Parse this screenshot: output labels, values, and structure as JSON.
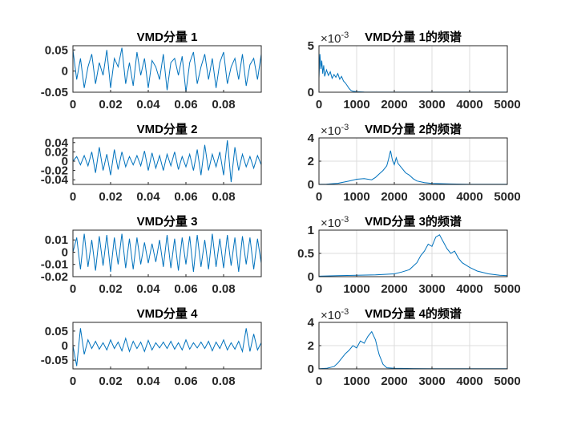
{
  "figure": {
    "background": "#ffffff"
  },
  "style": {
    "line_color": "#0072bd",
    "axis_color": "#262626",
    "grid_color": "#dcdcdc"
  },
  "chart_data": [
    {
      "id": "vmd1",
      "type": "line",
      "title": "VMD分量 1",
      "xlim": [
        0,
        0.1
      ],
      "ylim": [
        -0.05,
        0.06
      ],
      "xticks": [
        0,
        0.02,
        0.04,
        0.06,
        0.08
      ],
      "xtick_labels": [
        "0",
        "0.02",
        "0.04",
        "0.06",
        "0.08"
      ],
      "yticks": [
        0.05,
        0,
        -0.05
      ],
      "ytick_labels": [
        "0.05",
        "0",
        "-0.05"
      ],
      "grid": false,
      "series": [
        {
          "x": [
            0,
            0.002,
            0.004,
            0.006,
            0.008,
            0.01,
            0.012,
            0.014,
            0.016,
            0.018,
            0.02,
            0.022,
            0.024,
            0.026,
            0.028,
            0.03,
            0.032,
            0.034,
            0.036,
            0.038,
            0.04,
            0.042,
            0.044,
            0.046,
            0.048,
            0.05,
            0.052,
            0.054,
            0.056,
            0.058,
            0.06,
            0.062,
            0.064,
            0.066,
            0.068,
            0.07,
            0.072,
            0.074,
            0.076,
            0.078,
            0.08,
            0.082,
            0.084,
            0.086,
            0.088,
            0.09,
            0.092,
            0.094,
            0.096,
            0.098,
            0.1
          ],
          "y": [
            0.05,
            -0.02,
            0.03,
            -0.04,
            0.01,
            0.04,
            -0.03,
            0.02,
            -0.01,
            0.05,
            -0.04,
            0.03,
            0.01,
            0.055,
            -0.03,
            0.02,
            -0.035,
            0.045,
            -0.01,
            0.03,
            -0.04,
            0.025,
            0.01,
            -0.02,
            0.04,
            -0.045,
            0.02,
            0.03,
            -0.01,
            0.035,
            -0.05,
            0.02,
            0.045,
            -0.03,
            0.01,
            0.04,
            -0.02,
            0.03,
            -0.04,
            0.02,
            0.045,
            -0.03,
            0.01,
            0.03,
            -0.02,
            0.04,
            -0.035,
            0.015,
            0.03,
            -0.02,
            0.04
          ]
        }
      ]
    },
    {
      "id": "spec1",
      "type": "line",
      "title": "VMD分量 1的频谱",
      "exponent_label": "×10",
      "exponent_power": "-3",
      "xlim": [
        0,
        5000
      ],
      "ylim": [
        0,
        5
      ],
      "xticks": [
        0,
        1000,
        2000,
        3000,
        4000,
        5000
      ],
      "xtick_labels": [
        "0",
        "1000",
        "2000",
        "3000",
        "4000",
        "5000"
      ],
      "yticks": [
        5,
        0
      ],
      "ytick_labels": [
        "5",
        "0"
      ],
      "grid": true,
      "series": [
        {
          "x": [
            0,
            25,
            50,
            75,
            100,
            125,
            150,
            200,
            250,
            300,
            350,
            400,
            450,
            500,
            550,
            600,
            650,
            700,
            750,
            800,
            850,
            900,
            1000,
            1200,
            1500,
            2000,
            3000,
            4000,
            5000
          ],
          "y": [
            1.5,
            4.1,
            2.5,
            3.4,
            2.0,
            2.9,
            1.7,
            2.4,
            1.8,
            2.2,
            1.5,
            1.9,
            1.6,
            2.0,
            1.4,
            1.7,
            1.2,
            1.0,
            0.7,
            0.4,
            0.2,
            0.1,
            0.05,
            0.02,
            0.01,
            0.01,
            0.01,
            0.005,
            0.005
          ]
        }
      ]
    },
    {
      "id": "vmd2",
      "type": "line",
      "title": "VMD分量 2",
      "xlim": [
        0,
        0.1
      ],
      "ylim": [
        -0.05,
        0.05
      ],
      "xticks": [
        0,
        0.02,
        0.04,
        0.06,
        0.08
      ],
      "xtick_labels": [
        "0",
        "0.02",
        "0.04",
        "0.06",
        "0.08"
      ],
      "yticks": [
        0.04,
        0.02,
        0,
        -0.02,
        -0.04
      ],
      "ytick_labels": [
        "0.04",
        "0.02",
        "0",
        "-0.02",
        "-0.04"
      ],
      "grid": false,
      "series": [
        {
          "x": [
            0,
            0.002,
            0.004,
            0.006,
            0.008,
            0.01,
            0.012,
            0.014,
            0.016,
            0.018,
            0.02,
            0.022,
            0.024,
            0.026,
            0.028,
            0.03,
            0.032,
            0.034,
            0.036,
            0.038,
            0.04,
            0.042,
            0.044,
            0.046,
            0.048,
            0.05,
            0.052,
            0.054,
            0.056,
            0.058,
            0.06,
            0.062,
            0.064,
            0.066,
            0.068,
            0.07,
            0.072,
            0.074,
            0.076,
            0.078,
            0.08,
            0.082,
            0.084,
            0.086,
            0.088,
            0.09,
            0.092,
            0.094,
            0.096,
            0.098,
            0.1
          ],
          "y": [
            0.0,
            0.01,
            -0.008,
            0.012,
            -0.01,
            0.02,
            -0.025,
            0.03,
            -0.02,
            0.015,
            -0.03,
            0.025,
            -0.018,
            0.02,
            -0.012,
            0.01,
            -0.008,
            0.012,
            -0.01,
            0.022,
            -0.02,
            0.018,
            -0.015,
            0.012,
            -0.02,
            0.015,
            -0.01,
            0.02,
            -0.018,
            0.01,
            -0.012,
            0.015,
            -0.02,
            0.025,
            -0.03,
            0.035,
            -0.02,
            0.015,
            -0.012,
            0.02,
            -0.03,
            0.045,
            -0.045,
            0.03,
            -0.02,
            0.015,
            -0.012,
            0.01,
            -0.015,
            0.012,
            -0.008
          ]
        }
      ]
    },
    {
      "id": "spec2",
      "type": "line",
      "title": "VMD分量 2的频谱",
      "exponent_label": "×10",
      "exponent_power": "-3",
      "xlim": [
        0,
        5000
      ],
      "ylim": [
        0,
        4
      ],
      "xticks": [
        0,
        1000,
        2000,
        3000,
        4000,
        5000
      ],
      "xtick_labels": [
        "0",
        "1000",
        "2000",
        "3000",
        "4000",
        "5000"
      ],
      "yticks": [
        4,
        2,
        0
      ],
      "ytick_labels": [
        "4",
        "2",
        "0"
      ],
      "grid": true,
      "series": [
        {
          "x": [
            0,
            200,
            500,
            800,
            1000,
            1200,
            1400,
            1500,
            1600,
            1700,
            1800,
            1850,
            1900,
            1950,
            2000,
            2050,
            2100,
            2200,
            2300,
            2400,
            2500,
            2600,
            2800,
            3000,
            3500,
            4000,
            5000
          ],
          "y": [
            0.02,
            0.03,
            0.1,
            0.3,
            0.45,
            0.5,
            0.4,
            0.6,
            0.9,
            1.2,
            1.6,
            2.2,
            2.9,
            2.1,
            1.7,
            2.3,
            1.8,
            1.4,
            1.0,
            0.8,
            0.5,
            0.3,
            0.15,
            0.08,
            0.04,
            0.02,
            0.02
          ]
        }
      ]
    },
    {
      "id": "vmd3",
      "type": "line",
      "title": "VMD分量 3",
      "xlim": [
        0,
        0.1
      ],
      "ylim": [
        -0.02,
        0.018
      ],
      "xticks": [
        0,
        0.02,
        0.04,
        0.06,
        0.08
      ],
      "xtick_labels": [
        "0",
        "0.02",
        "0.04",
        "0.06",
        "0.08"
      ],
      "yticks": [
        0.01,
        0,
        -0.01,
        -0.02
      ],
      "ytick_labels": [
        "0.01",
        "0",
        "-0.01",
        "-0.02"
      ],
      "grid": false,
      "series": [
        {
          "x": [
            0,
            0.002,
            0.004,
            0.006,
            0.008,
            0.01,
            0.012,
            0.014,
            0.016,
            0.018,
            0.02,
            0.022,
            0.024,
            0.026,
            0.028,
            0.03,
            0.032,
            0.034,
            0.036,
            0.038,
            0.04,
            0.042,
            0.044,
            0.046,
            0.048,
            0.05,
            0.052,
            0.054,
            0.056,
            0.058,
            0.06,
            0.062,
            0.064,
            0.066,
            0.068,
            0.07,
            0.072,
            0.074,
            0.076,
            0.078,
            0.08,
            0.082,
            0.084,
            0.086,
            0.088,
            0.09,
            0.092,
            0.094,
            0.096,
            0.098,
            0.1
          ],
          "y": [
            0.0,
            0.012,
            -0.014,
            0.015,
            -0.012,
            0.01,
            -0.015,
            0.013,
            -0.011,
            0.014,
            -0.016,
            0.012,
            -0.01,
            0.015,
            -0.013,
            0.011,
            -0.014,
            0.012,
            -0.01,
            0.008,
            -0.009,
            0.007,
            -0.008,
            0.01,
            -0.012,
            0.014,
            -0.013,
            0.011,
            -0.015,
            0.012,
            -0.01,
            0.013,
            -0.016,
            0.014,
            -0.012,
            0.01,
            -0.014,
            0.015,
            -0.012,
            0.011,
            -0.013,
            0.014,
            -0.011,
            0.012,
            -0.016,
            0.013,
            -0.01,
            0.012,
            -0.014,
            0.011,
            -0.009
          ]
        }
      ]
    },
    {
      "id": "spec3",
      "type": "line",
      "title": "VMD分量 3的频谱",
      "exponent_label": "×10",
      "exponent_power": "-3",
      "xlim": [
        0,
        5000
      ],
      "ylim": [
        0,
        1
      ],
      "xticks": [
        0,
        1000,
        2000,
        3000,
        4000,
        5000
      ],
      "xtick_labels": [
        "0",
        "1000",
        "2000",
        "3000",
        "4000",
        "5000"
      ],
      "yticks": [
        1,
        0.5,
        0
      ],
      "ytick_labels": [
        "1",
        "0.5",
        "0"
      ],
      "grid": true,
      "series": [
        {
          "x": [
            0,
            500,
            1000,
            1500,
            2000,
            2200,
            2400,
            2600,
            2700,
            2800,
            2900,
            3000,
            3100,
            3200,
            3300,
            3400,
            3500,
            3600,
            3700,
            3800,
            4000,
            4200,
            4500,
            4800,
            5000
          ],
          "y": [
            0.01,
            0.02,
            0.03,
            0.04,
            0.06,
            0.1,
            0.15,
            0.3,
            0.45,
            0.55,
            0.7,
            0.65,
            0.85,
            0.9,
            0.75,
            0.6,
            0.5,
            0.55,
            0.4,
            0.3,
            0.2,
            0.12,
            0.06,
            0.03,
            0.02
          ]
        }
      ]
    },
    {
      "id": "vmd4",
      "type": "line",
      "title": "VMD分量 4",
      "xlim": [
        0,
        0.1
      ],
      "ylim": [
        -0.08,
        0.08
      ],
      "xticks": [
        0,
        0.02,
        0.04,
        0.06,
        0.08
      ],
      "xtick_labels": [
        "0",
        "0.02",
        "0.04",
        "0.06",
        "0.08"
      ],
      "yticks": [
        0.05,
        0,
        -0.05
      ],
      "ytick_labels": [
        "0.05",
        "0",
        "-0.05"
      ],
      "grid": false,
      "series": [
        {
          "x": [
            0,
            0.002,
            0.004,
            0.006,
            0.008,
            0.01,
            0.012,
            0.014,
            0.016,
            0.018,
            0.02,
            0.022,
            0.024,
            0.026,
            0.028,
            0.03,
            0.032,
            0.034,
            0.036,
            0.038,
            0.04,
            0.042,
            0.044,
            0.046,
            0.048,
            0.05,
            0.052,
            0.054,
            0.056,
            0.058,
            0.06,
            0.062,
            0.064,
            0.066,
            0.068,
            0.07,
            0.072,
            0.074,
            0.076,
            0.078,
            0.08,
            0.082,
            0.084,
            0.086,
            0.088,
            0.09,
            0.092,
            0.094,
            0.096,
            0.098,
            0.1
          ],
          "y": [
            0.0,
            -0.07,
            0.06,
            -0.03,
            0.02,
            -0.01,
            0.015,
            -0.012,
            0.01,
            -0.015,
            0.02,
            -0.01,
            0.012,
            -0.018,
            0.025,
            -0.02,
            0.015,
            -0.01,
            0.012,
            -0.02,
            0.018,
            -0.015,
            0.01,
            -0.008,
            0.012,
            -0.01,
            0.015,
            -0.012,
            0.01,
            -0.015,
            0.02,
            -0.012,
            0.01,
            -0.008,
            0.012,
            -0.01,
            0.015,
            -0.018,
            0.012,
            -0.01,
            0.02,
            -0.015,
            0.01,
            -0.012,
            0.015,
            -0.02,
            0.06,
            -0.02,
            0.04,
            -0.015,
            0.01
          ]
        }
      ]
    },
    {
      "id": "spec4",
      "type": "line",
      "title": "VMD分量 4的频谱",
      "exponent_label": "×10",
      "exponent_power": "-3",
      "xlim": [
        0,
        5000
      ],
      "ylim": [
        0,
        4
      ],
      "xticks": [
        0,
        1000,
        2000,
        3000,
        4000,
        5000
      ],
      "xtick_labels": [
        "0",
        "1000",
        "2000",
        "3000",
        "4000",
        "5000"
      ],
      "yticks": [
        4,
        2,
        0
      ],
      "ytick_labels": [
        "4",
        "2",
        "0"
      ],
      "grid": true,
      "series": [
        {
          "x": [
            0,
            200,
            400,
            500,
            600,
            700,
            800,
            900,
            1000,
            1100,
            1200,
            1300,
            1400,
            1500,
            1550,
            1600,
            1700,
            1800,
            2000,
            2500,
            3000,
            4000,
            5000
          ],
          "y": [
            0.02,
            0.05,
            0.2,
            0.5,
            0.9,
            1.3,
            1.6,
            2.0,
            1.8,
            2.4,
            2.2,
            2.8,
            3.2,
            2.5,
            1.8,
            1.2,
            0.4,
            0.1,
            0.05,
            0.03,
            0.02,
            0.02,
            0.02
          ]
        }
      ]
    }
  ]
}
